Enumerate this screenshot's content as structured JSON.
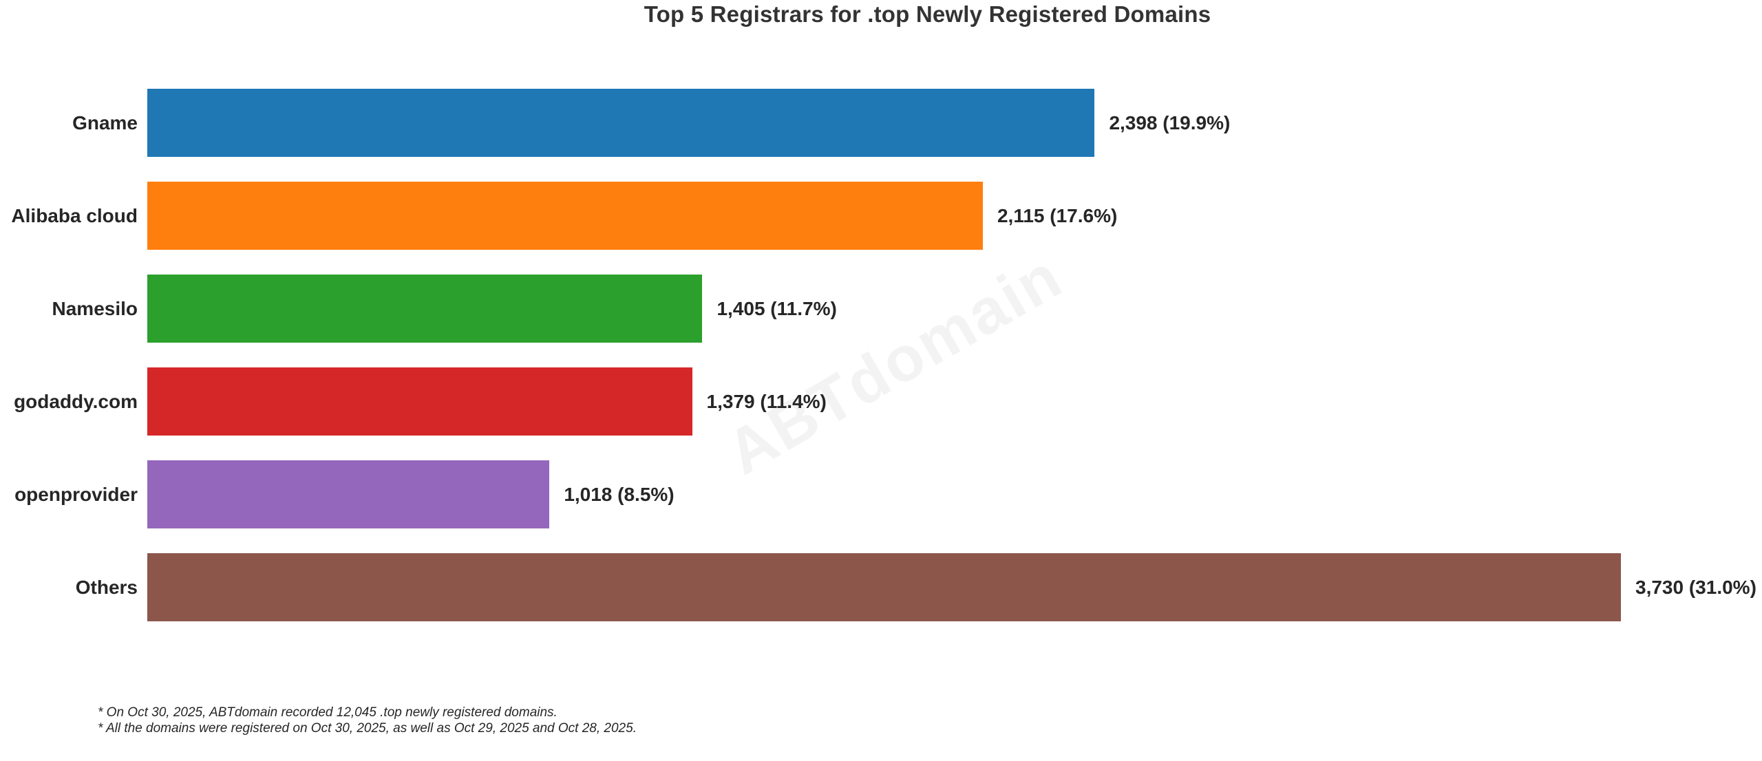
{
  "page": {
    "background_color": "#ffffff",
    "text_color": "#262626",
    "title_color": "#333333",
    "watermark_color": "#f3f3f3"
  },
  "title": "Top 5 Registrars for .top Newly Registered Domains",
  "watermark": "ABTdomain",
  "footnotes": [
    "* On Oct 30, 2025, ABTdomain recorded 12,045 .top newly registered domains.",
    "* All the domains were registered on Oct 30, 2025, as well as Oct 29, 2025 and Oct 28, 2025."
  ],
  "chart_data": {
    "type": "bar",
    "orientation": "horizontal",
    "title": "Top 5 Registrars for .top Newly Registered Domains",
    "categories": [
      "Gname",
      "Alibaba cloud",
      "Namesilo",
      "godaddy.com",
      "openprovider",
      "Others"
    ],
    "values": [
      2398,
      2115,
      1405,
      1379,
      1018,
      3730
    ],
    "percentages": [
      19.9,
      17.6,
      11.7,
      11.4,
      8.5,
      31.0
    ],
    "value_labels": [
      "2,398 (19.9%)",
      "2,115 (17.6%)",
      "1,405 (11.7%)",
      "1,379 (11.4%)",
      "1,018 (8.5%)",
      "3,730 (31.0%)"
    ],
    "bar_colors": [
      "#1f77b4",
      "#ff7f0e",
      "#2ca02c",
      "#d62728",
      "#9467bd",
      "#8c564b"
    ],
    "xlabel": "",
    "ylabel": "",
    "xlim": [
      0,
      4090
    ],
    "grid": false,
    "legend": "none",
    "total_recorded_note": "12,045"
  }
}
